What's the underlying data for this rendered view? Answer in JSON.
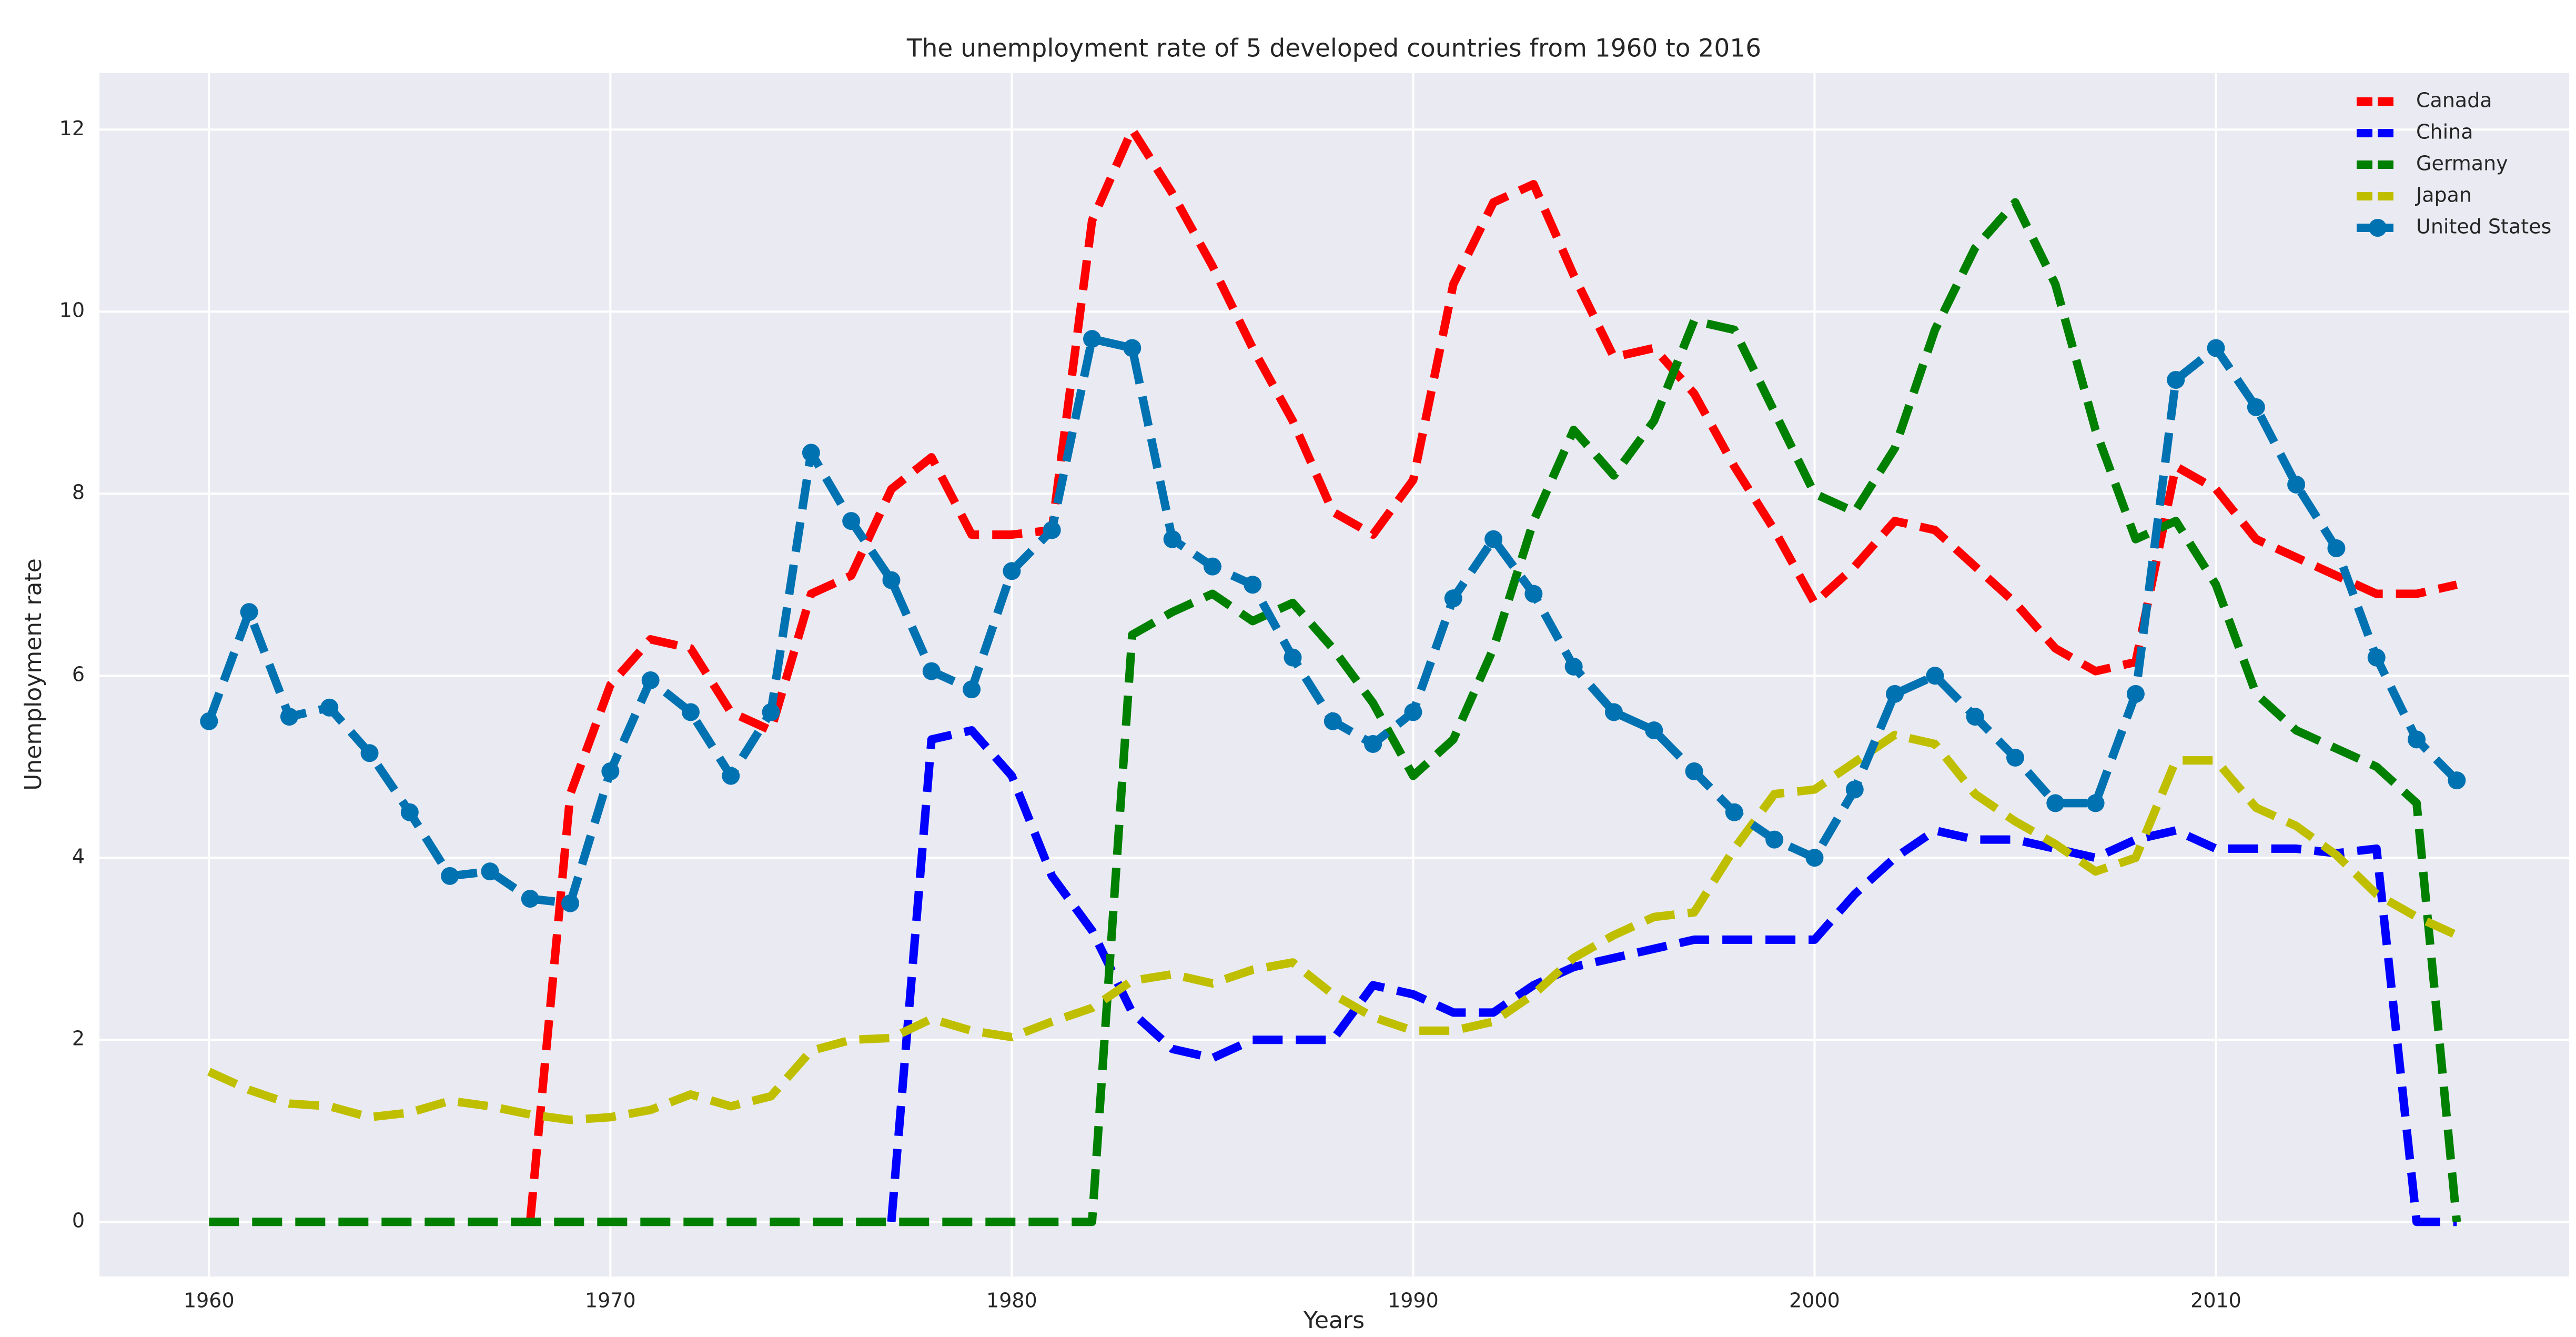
{
  "chart_data": {
    "type": "line",
    "title": "The unemployment rate of 5 developed countries from 1960 to 2016",
    "x_label": "Years",
    "y_label": "Unemployment rate",
    "x": [
      1960,
      1961,
      1962,
      1963,
      1964,
      1965,
      1966,
      1967,
      1968,
      1969,
      1970,
      1971,
      1972,
      1973,
      1974,
      1975,
      1976,
      1977,
      1978,
      1979,
      1980,
      1981,
      1982,
      1983,
      1984,
      1985,
      1986,
      1987,
      1988,
      1989,
      1990,
      1991,
      1992,
      1993,
      1994,
      1995,
      1996,
      1997,
      1998,
      1999,
      2000,
      2001,
      2002,
      2003,
      2004,
      2005,
      2006,
      2007,
      2008,
      2009,
      2010,
      2011,
      2012,
      2013,
      2014,
      2015,
      2016
    ],
    "series": [
      {
        "name": "Canada",
        "color": "#ff0000",
        "values": [
          null,
          null,
          null,
          null,
          null,
          null,
          null,
          null,
          0,
          4.7,
          5.9,
          6.4,
          6.3,
          5.6,
          5.4,
          6.9,
          7.1,
          8.05,
          8.4,
          7.55,
          7.55,
          7.6,
          11.0,
          12.0,
          11.3,
          10.5,
          9.6,
          8.8,
          7.8,
          7.55,
          8.15,
          10.3,
          11.2,
          11.4,
          10.4,
          9.5,
          9.6,
          9.1,
          8.3,
          7.6,
          6.8,
          7.2,
          7.7,
          7.6,
          7.2,
          6.8,
          6.3,
          6.05,
          6.15,
          8.3,
          8.05,
          7.5,
          7.3,
          7.1,
          6.9,
          6.9,
          7.0
        ]
      },
      {
        "name": "China",
        "color": "#0000ff",
        "values": [
          null,
          null,
          null,
          null,
          null,
          null,
          null,
          null,
          null,
          null,
          null,
          null,
          null,
          null,
          null,
          null,
          null,
          0,
          5.3,
          5.4,
          4.9,
          3.8,
          3.2,
          2.3,
          1.9,
          1.8,
          2.0,
          2.0,
          2.0,
          2.6,
          2.5,
          2.3,
          2.3,
          2.6,
          2.8,
          2.9,
          3.0,
          3.1,
          3.1,
          3.1,
          3.1,
          3.6,
          4.0,
          4.3,
          4.2,
          4.2,
          4.1,
          4.0,
          4.2,
          4.3,
          4.1,
          4.1,
          4.1,
          4.05,
          4.1,
          0,
          0
        ]
      },
      {
        "name": "Germany",
        "color": "#008000",
        "values": [
          0,
          0,
          0,
          0,
          0,
          0,
          0,
          0,
          0,
          0,
          0,
          0,
          0,
          0,
          0,
          0,
          0,
          0,
          0,
          0,
          0,
          0,
          0,
          6.45,
          6.7,
          6.9,
          6.6,
          6.8,
          6.3,
          5.7,
          4.9,
          5.3,
          6.3,
          7.7,
          8.7,
          8.2,
          8.8,
          9.9,
          9.8,
          8.9,
          8.0,
          7.8,
          8.5,
          9.8,
          10.7,
          11.2,
          10.3,
          8.7,
          7.5,
          7.7,
          7.0,
          5.8,
          5.4,
          5.2,
          5.0,
          4.6,
          0
        ]
      },
      {
        "name": "Japan",
        "color": "#bfbf00",
        "values": [
          1.65,
          1.45,
          1.3,
          1.27,
          1.15,
          1.2,
          1.33,
          1.27,
          1.18,
          1.12,
          1.15,
          1.23,
          1.4,
          1.27,
          1.38,
          1.88,
          2.0,
          2.02,
          2.23,
          2.1,
          2.03,
          2.2,
          2.35,
          2.65,
          2.72,
          2.62,
          2.77,
          2.85,
          2.5,
          2.25,
          2.1,
          2.1,
          2.2,
          2.5,
          2.9,
          3.15,
          3.35,
          3.4,
          4.1,
          4.7,
          4.75,
          5.05,
          5.35,
          5.25,
          4.7,
          4.4,
          4.15,
          3.85,
          4.0,
          5.07,
          5.07,
          4.55,
          4.35,
          4.03,
          3.6,
          3.35,
          3.15
        ]
      },
      {
        "name": "United States",
        "color": "#0072b2",
        "marker": "o",
        "values": [
          5.5,
          6.7,
          5.55,
          5.65,
          5.15,
          4.5,
          3.8,
          3.85,
          3.55,
          3.5,
          4.95,
          5.95,
          5.6,
          4.9,
          5.6,
          8.45,
          7.7,
          7.05,
          6.05,
          5.85,
          7.15,
          7.6,
          9.7,
          9.6,
          7.5,
          7.2,
          7.0,
          6.2,
          5.5,
          5.25,
          5.6,
          6.85,
          7.5,
          6.9,
          6.1,
          5.6,
          5.4,
          4.95,
          4.5,
          4.2,
          4.0,
          4.75,
          5.8,
          6.0,
          5.55,
          5.1,
          4.6,
          4.6,
          5.8,
          9.25,
          9.6,
          8.95,
          8.1,
          7.4,
          6.2,
          5.3,
          4.85
        ]
      }
    ],
    "xlim": [
      1957.27,
      2018.8
    ],
    "ylim": [
      -0.6,
      12.62
    ],
    "xticks": [
      1960,
      1970,
      1980,
      1990,
      2000,
      2010
    ],
    "yticks": [
      0,
      2,
      4,
      6,
      8,
      10,
      12
    ],
    "grid": true,
    "legend": "upper right",
    "linestyle": "dashed"
  }
}
